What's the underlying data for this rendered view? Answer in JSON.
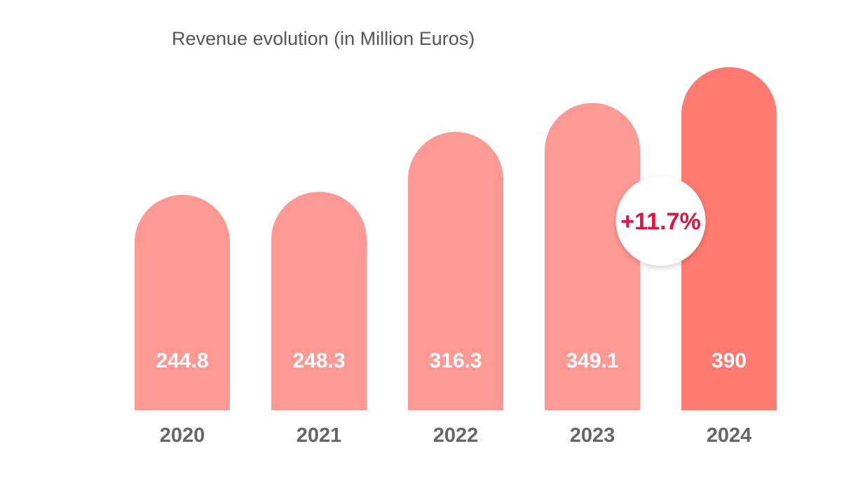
{
  "chart_data": {
    "type": "bar",
    "title": "Revenue evolution (in Million Euros)",
    "categories": [
      "2020",
      "2021",
      "2022",
      "2023",
      "2024"
    ],
    "value_labels": [
      "244.8",
      "248.3",
      "316.3",
      "349.1",
      "390"
    ],
    "values": [
      244.8,
      248.3,
      316.3,
      349.1,
      390
    ],
    "annotation": "+11.7%",
    "colors": {
      "bar": "#ff9994",
      "highlight_bar": "#ff7a70",
      "title": "#555555",
      "tick_label": "#666666",
      "annotation_text": "#e0143c"
    },
    "highlight_category": "2024",
    "grid": false,
    "legend": "none"
  }
}
